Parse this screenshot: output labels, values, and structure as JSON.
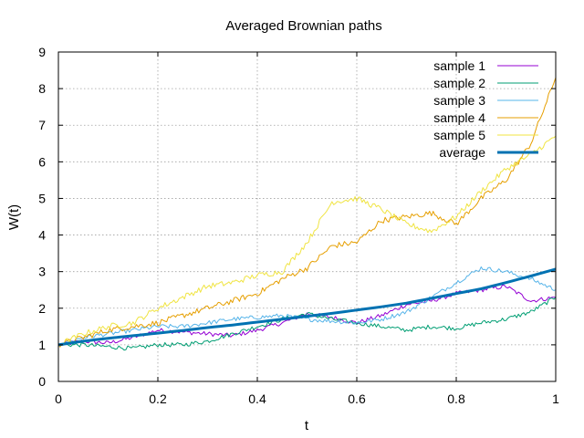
{
  "chart_data": {
    "type": "line",
    "title": "Averaged Brownian paths",
    "xlabel": "t",
    "ylabel": "W(t)",
    "xlim": [
      0,
      1
    ],
    "ylim": [
      0,
      9
    ],
    "x_ticks": [
      "0",
      "0.2",
      "0.4",
      "0.6",
      "0.8",
      "1"
    ],
    "y_ticks": [
      "0",
      "1",
      "2",
      "3",
      "4",
      "5",
      "6",
      "7",
      "8",
      "9"
    ],
    "grid": true,
    "legend_position": "top-right",
    "x": [
      0,
      0.05,
      0.1,
      0.15,
      0.2,
      0.25,
      0.3,
      0.35,
      0.4,
      0.45,
      0.5,
      0.55,
      0.6,
      0.65,
      0.7,
      0.75,
      0.8,
      0.85,
      0.9,
      0.95,
      1.0
    ],
    "series": [
      {
        "name": "sample 1",
        "color": "#9400d3",
        "width": 1,
        "roughness": 0.06,
        "values": [
          1.0,
          1.1,
          1.05,
          1.2,
          1.4,
          1.35,
          1.3,
          1.25,
          1.4,
          1.6,
          1.85,
          1.75,
          1.6,
          1.8,
          2.1,
          2.2,
          2.4,
          2.5,
          2.6,
          2.2,
          2.3
        ]
      },
      {
        "name": "sample 2",
        "color": "#009e73",
        "width": 1,
        "roughness": 0.06,
        "values": [
          1.0,
          1.0,
          0.95,
          0.9,
          1.0,
          1.0,
          1.1,
          1.3,
          1.5,
          1.7,
          1.85,
          1.7,
          1.6,
          1.5,
          1.4,
          1.5,
          1.45,
          1.6,
          1.7,
          1.9,
          2.3
        ]
      },
      {
        "name": "sample 3",
        "color": "#56b4e9",
        "width": 1,
        "roughness": 0.06,
        "values": [
          1.0,
          1.2,
          1.3,
          1.4,
          1.5,
          1.5,
          1.6,
          1.7,
          1.75,
          1.8,
          1.7,
          1.65,
          1.6,
          1.7,
          1.9,
          2.3,
          2.7,
          3.1,
          3.0,
          2.8,
          2.5
        ]
      },
      {
        "name": "sample 4",
        "color": "#e69f00",
        "width": 1,
        "roughness": 0.08,
        "values": [
          1.0,
          1.2,
          1.4,
          1.5,
          1.6,
          1.8,
          2.0,
          2.2,
          2.4,
          2.8,
          3.1,
          3.7,
          3.8,
          4.4,
          4.5,
          4.6,
          4.3,
          5.0,
          5.5,
          6.5,
          8.3
        ]
      },
      {
        "name": "sample 5",
        "color": "#f0e442",
        "width": 1,
        "roughness": 0.08,
        "values": [
          1.0,
          1.3,
          1.5,
          1.6,
          2.0,
          2.3,
          2.6,
          2.7,
          2.9,
          3.0,
          3.8,
          4.9,
          5.0,
          4.7,
          4.3,
          4.1,
          4.5,
          5.2,
          5.8,
          6.2,
          6.7
        ]
      },
      {
        "name": "average",
        "color": "#0072b2",
        "width": 3,
        "roughness": 0,
        "values": [
          1.0,
          1.1,
          1.18,
          1.25,
          1.32,
          1.39,
          1.47,
          1.54,
          1.62,
          1.7,
          1.78,
          1.86,
          1.95,
          2.04,
          2.14,
          2.27,
          2.4,
          2.53,
          2.7,
          2.88,
          3.07
        ]
      }
    ]
  }
}
